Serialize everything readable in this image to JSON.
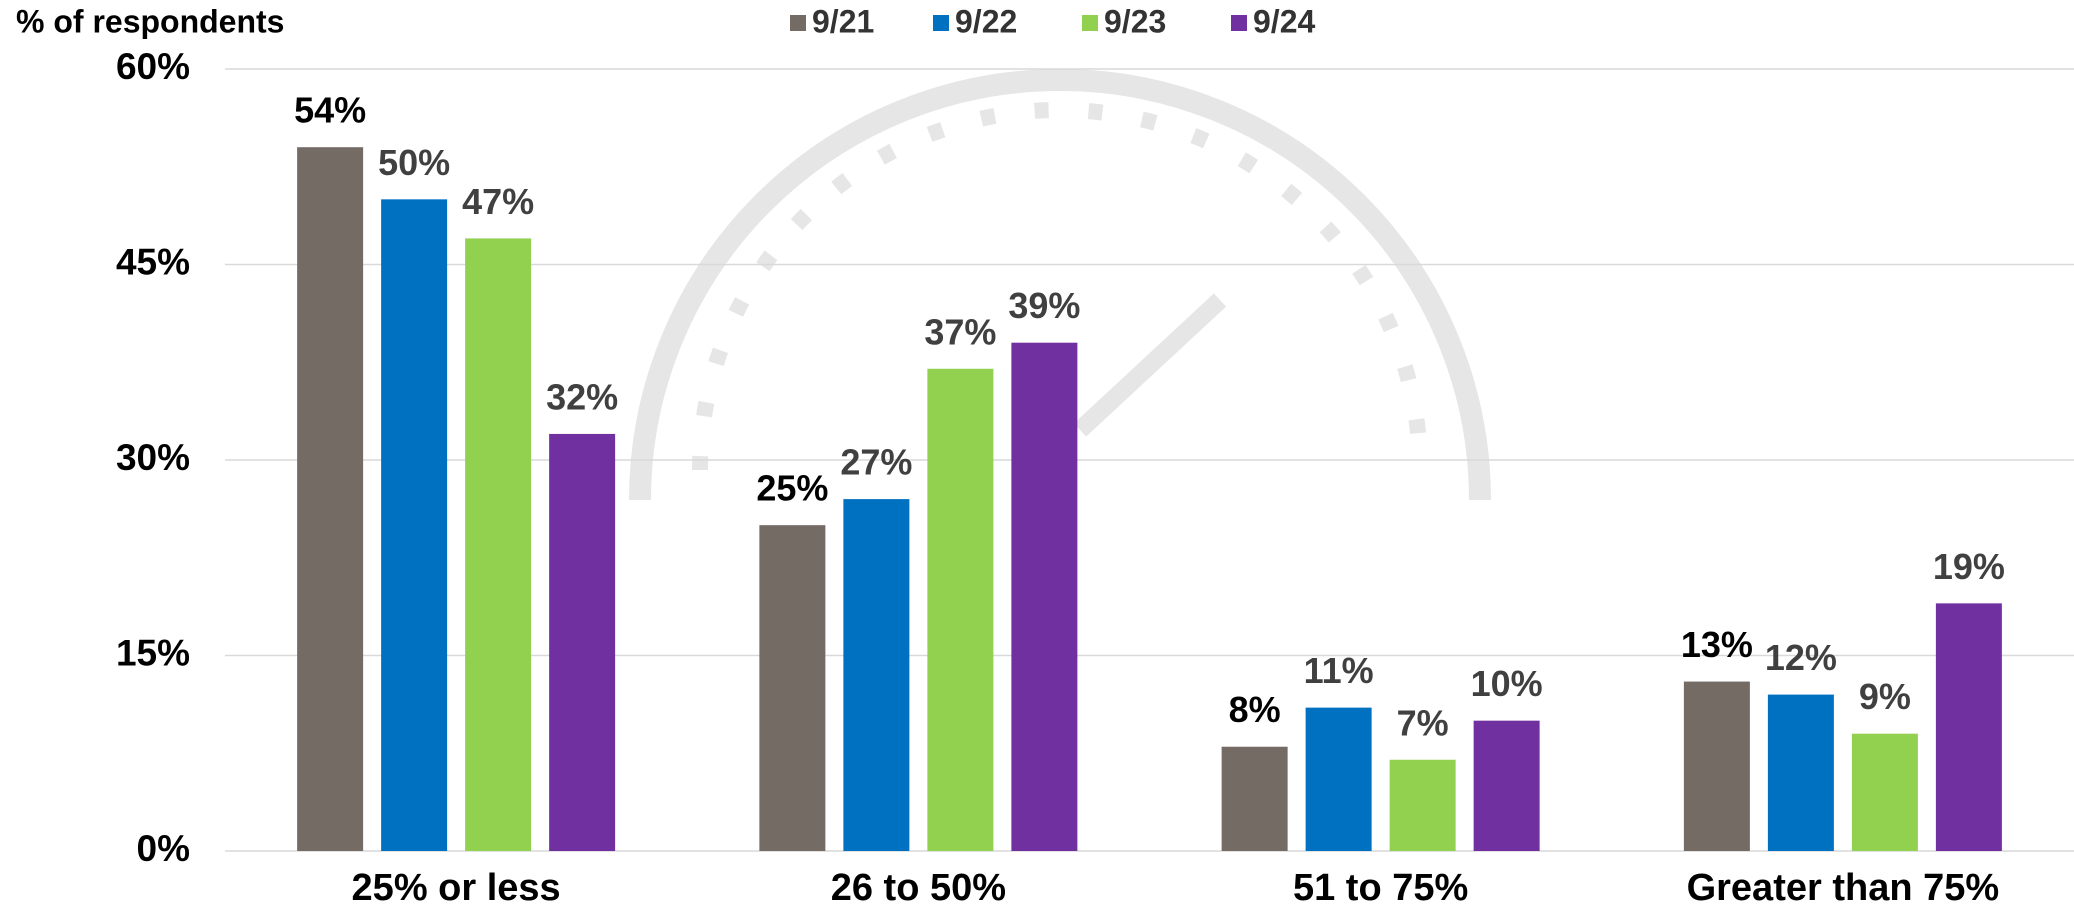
{
  "chart_data": {
    "type": "bar",
    "y_label": "% of respondents",
    "categories": [
      "25% or less",
      "26 to 50%",
      "51 to 75%",
      "Greater than 75%"
    ],
    "series": [
      {
        "name": "9/21",
        "color": "#756b65",
        "values": [
          54,
          25,
          8,
          13
        ],
        "value_labels": [
          "54%",
          "25%",
          "8%",
          "13%"
        ]
      },
      {
        "name": "9/22",
        "color": "#0070c0",
        "values": [
          50,
          27,
          11,
          12
        ],
        "value_labels": [
          "50%",
          "27%",
          "11%",
          "12%"
        ]
      },
      {
        "name": "9/23",
        "color": "#92d050",
        "values": [
          47,
          37,
          7,
          9
        ],
        "value_labels": [
          "47%",
          "37%",
          "7%",
          "9%"
        ]
      },
      {
        "name": "9/24",
        "color": "#7030a0",
        "values": [
          32,
          39,
          10,
          19
        ],
        "value_labels": [
          "32%",
          "39%",
          "10%",
          "19%"
        ]
      }
    ],
    "ylim": [
      0,
      60
    ],
    "yticks": [
      {
        "value": 0,
        "label": "0%"
      },
      {
        "value": 15,
        "label": "15%"
      },
      {
        "value": 30,
        "label": "30%"
      },
      {
        "value": 45,
        "label": "45%"
      },
      {
        "value": 60,
        "label": "60%"
      }
    ],
    "grid": true
  }
}
